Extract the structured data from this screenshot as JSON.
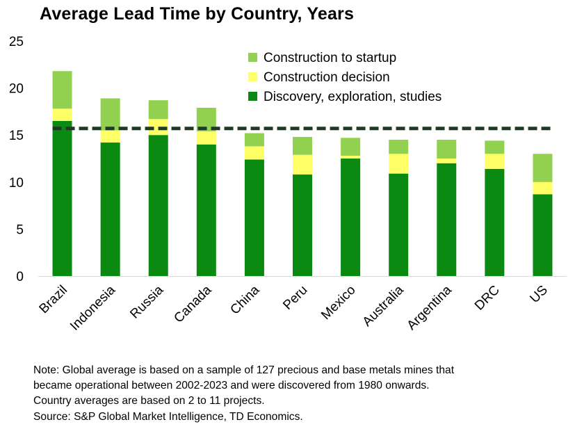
{
  "title": "Average Lead Time by Country, Years",
  "chart_data": {
    "type": "bar",
    "stacked": true,
    "title": "Average Lead Time by Country, Years",
    "xlabel": "",
    "ylabel": "",
    "ylim": [
      0,
      25
    ],
    "yticks": [
      "0",
      "5",
      "10",
      "15",
      "20",
      "25"
    ],
    "categories": [
      "Brazil",
      "Indonesia",
      "Russia",
      "Canada",
      "China",
      "Peru",
      "Mexico",
      "Australia",
      "Argentina",
      "DRC",
      "US"
    ],
    "series": [
      {
        "name": "Discovery, exploration, studies",
        "color": "#0b8a12",
        "values": [
          16.5,
          14.2,
          15.0,
          14.0,
          12.4,
          10.8,
          12.5,
          10.9,
          12.0,
          11.4,
          8.7
        ]
      },
      {
        "name": "Construction decision",
        "color": "#ffff66",
        "values": [
          1.3,
          1.3,
          1.7,
          1.4,
          1.4,
          2.1,
          0.3,
          2.1,
          0.5,
          1.6,
          1.3
        ]
      },
      {
        "name": "Construction to startup",
        "color": "#92d050",
        "values": [
          4.0,
          3.4,
          2.0,
          2.5,
          1.4,
          1.9,
          1.9,
          1.5,
          2.0,
          1.4,
          3.0
        ]
      }
    ],
    "reference_line": {
      "name": "Global average",
      "value": 15.7,
      "style": "dashed",
      "color": "#1e3a26"
    },
    "legend": {
      "placement": "top-right",
      "items": [
        "Construction to startup",
        "Construction decision",
        "Discovery, exploration, studies"
      ]
    },
    "grid": false
  },
  "notes": [
    "Note: Global average is based on a sample of 127 precious and base metals mines that",
    "became operational between 2002-2023 and were discovered from 1980 onwards.",
    "Country averages are based on 2 to 11 projects.",
    "Source: S&P Global Market Intelligence, TD Economics."
  ]
}
